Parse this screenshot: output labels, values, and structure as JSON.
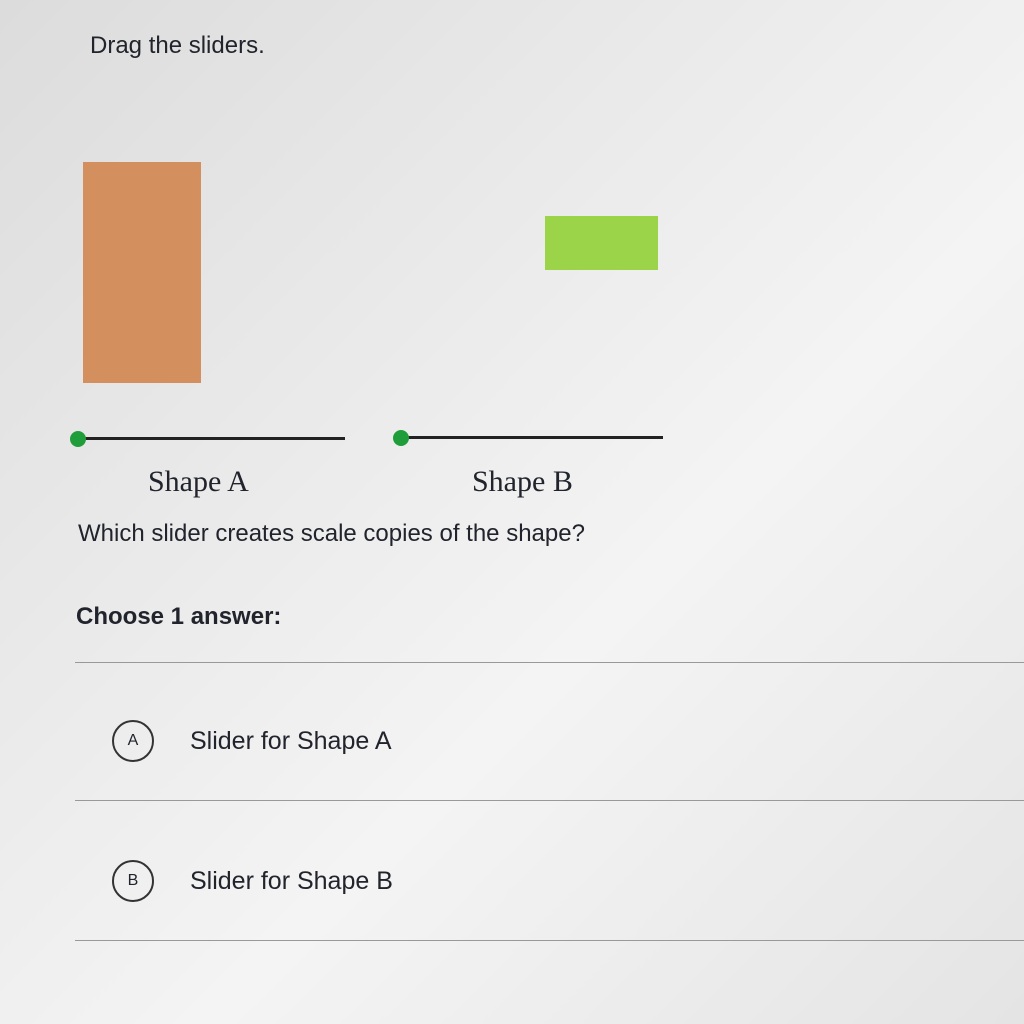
{
  "instruction": "Drag the sliders.",
  "shapes": [
    {
      "label": "Shape A",
      "color": "#d3905e",
      "slider_position": 0
    },
    {
      "label": "Shape B",
      "color": "#9bd349",
      "slider_position": 0
    }
  ],
  "question": "Which slider creates scale copies of the shape?",
  "choose": "Choose 1 answer:",
  "options": [
    {
      "letter": "A",
      "text": "Slider for Shape A"
    },
    {
      "letter": "B",
      "text": "Slider for Shape B"
    }
  ]
}
